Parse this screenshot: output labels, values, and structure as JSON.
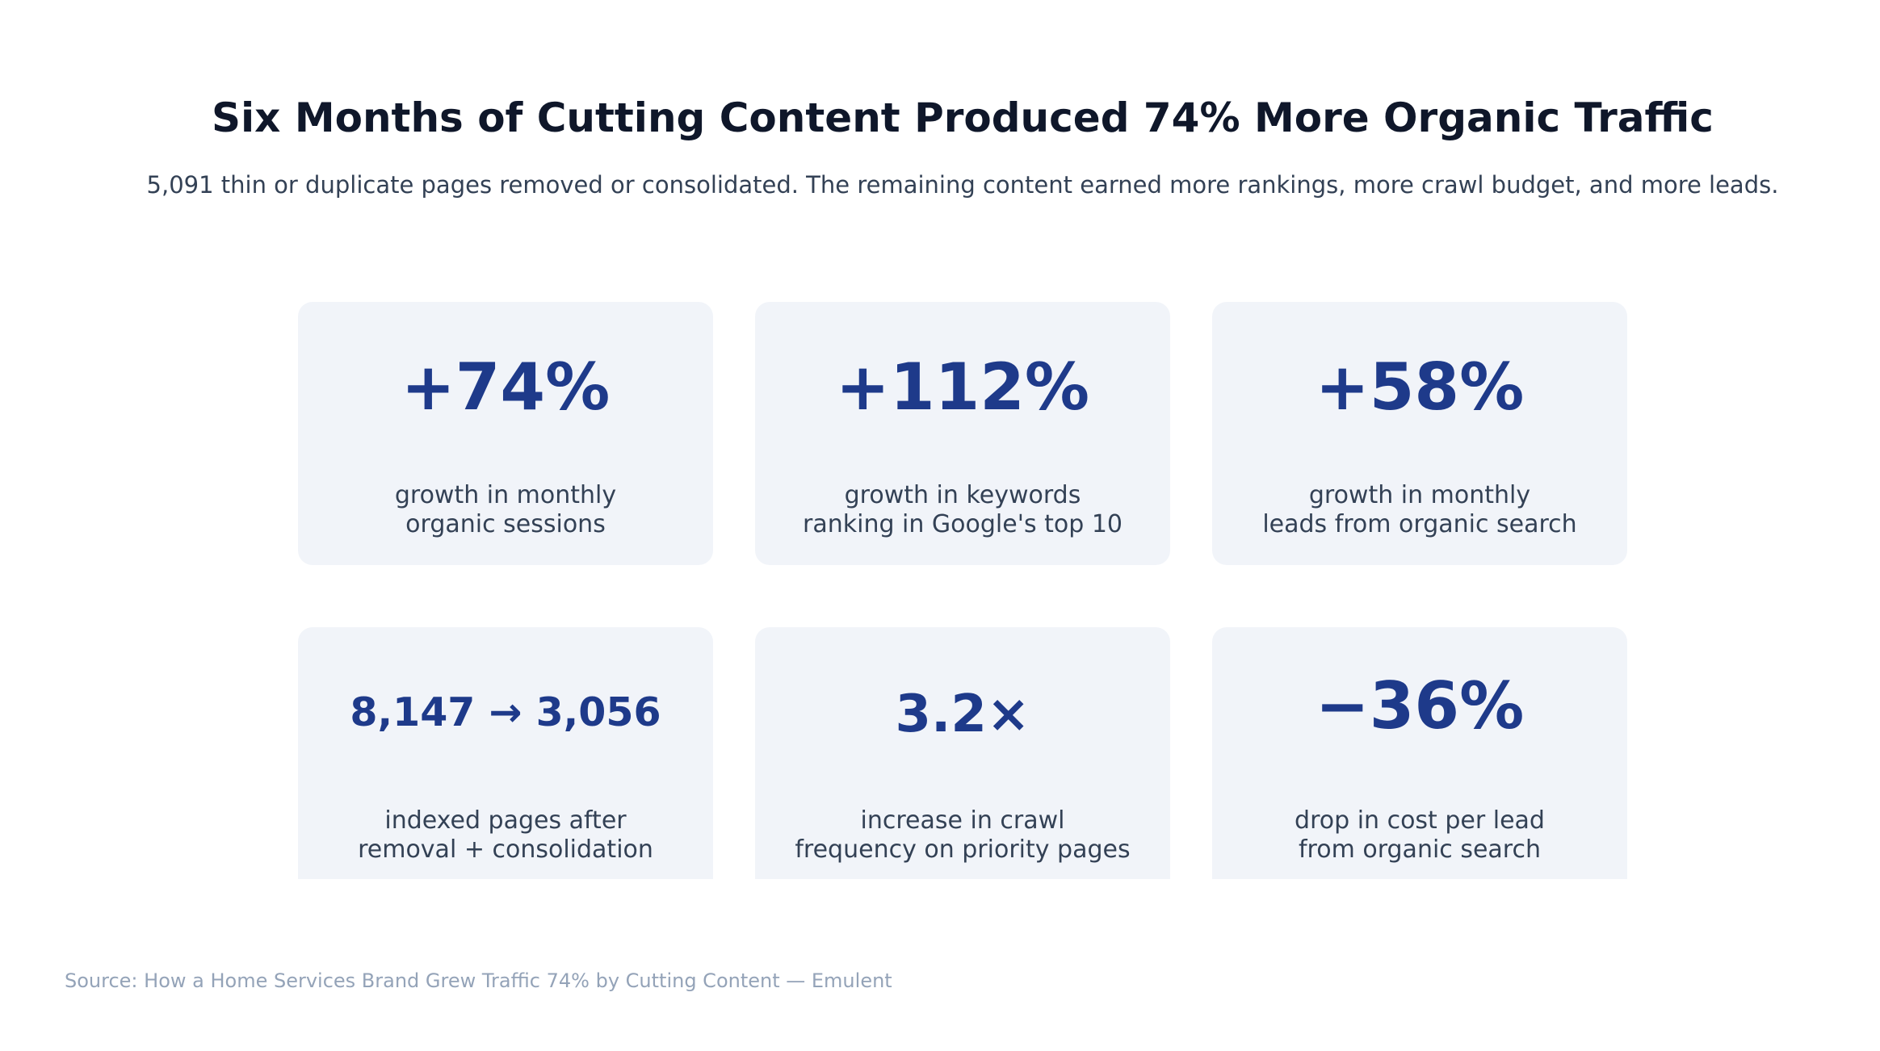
{
  "title": "Six Months of Cutting Content Produced 74% More Organic Traffic",
  "subtitle": "5,091 thin or duplicate pages removed or consolidated. The remaining content earned more rankings, more crawl budget, and more leads.",
  "cards": [
    {
      "metric": "+74%",
      "desc_line1": "growth in monthly",
      "desc_line2": "organic sessions"
    },
    {
      "metric": "+112%",
      "desc_line1": "growth in keywords",
      "desc_line2": "ranking in Google's top 10"
    },
    {
      "metric": "+58%",
      "desc_line1": "growth in monthly",
      "desc_line2": "leads from organic search"
    },
    {
      "metric": "8,147 → 3,056",
      "desc_line1": "indexed pages after",
      "desc_line2": "removal + consolidation"
    },
    {
      "metric": "3.2×",
      "desc_line1": "increase in crawl",
      "desc_line2": "frequency on priority pages"
    },
    {
      "metric": "−36%",
      "desc_line1": "drop in cost per lead",
      "desc_line2": "from organic search"
    }
  ],
  "source": "Source: How a Home Services Brand Grew Traffic 74% by Cutting Content — Emulent",
  "colors": {
    "card_bg": "#f1f4f9",
    "metric": "#1e3a8a",
    "title": "#0f172a",
    "body": "#334155",
    "muted": "#94a3b8"
  }
}
